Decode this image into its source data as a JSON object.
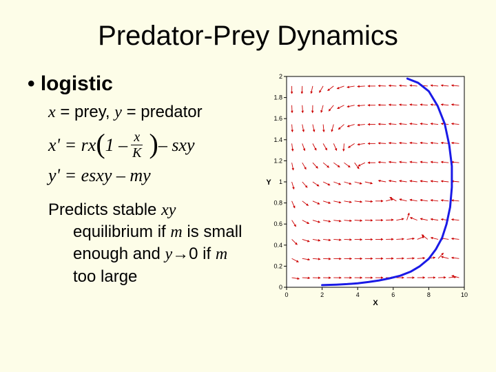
{
  "title": "Predator-Prey Dynamics",
  "bullet": "logistic",
  "sub_pre": "x",
  "sub_mid1": " = prey, ",
  "sub_y": "y",
  "sub_mid2": " = predator",
  "eq1_a": "x' = rx ",
  "eq1_b": "1 – ",
  "eq1_num": "x",
  "eq1_den": "K",
  "eq1_c": " – sxy",
  "eq2": "y' = esxy – my",
  "pred_a": "Predicts stable ",
  "pred_xy": "xy",
  "pred_b": " equilibrium if ",
  "pred_m1": "m",
  "pred_c": " is small enough and ",
  "pred_y0": "y→",
  "pred_zero": "0",
  "pred_d": " if ",
  "pred_m2": "m",
  "pred_e": " too large",
  "chart": {
    "type": "vector-field",
    "xlim": [
      0,
      10
    ],
    "ylim": [
      0,
      2
    ],
    "xticks": [
      0,
      2,
      4,
      6,
      8,
      10
    ],
    "yticks": [
      0,
      0.2,
      0.4,
      0.6,
      0.8,
      1,
      1.2,
      1.4,
      1.6,
      1.8,
      2
    ],
    "xlabel": "X",
    "ylabel": "Y",
    "tick_fontsize": 9,
    "label_fontsize": 11,
    "background_color": "#ffffff",
    "border_color": "#000000",
    "arrow_color": "#cc0000",
    "curve_color": "#1a1ae6",
    "curve_width": 3,
    "grid": {
      "nx": 17,
      "ny": 11
    },
    "field": {
      "r": 1.0,
      "K": 10.0,
      "s": 0.5,
      "e": 0.2,
      "m": 0.5
    },
    "curve": [
      [
        2.0,
        0.02
      ],
      [
        2.3,
        0.022
      ],
      [
        2.8,
        0.025
      ],
      [
        3.4,
        0.03
      ],
      [
        4.0,
        0.038
      ],
      [
        4.6,
        0.05
      ],
      [
        5.2,
        0.065
      ],
      [
        5.8,
        0.085
      ],
      [
        6.4,
        0.11
      ],
      [
        7.0,
        0.15
      ],
      [
        7.5,
        0.2
      ],
      [
        8.0,
        0.27
      ],
      [
        8.4,
        0.36
      ],
      [
        8.75,
        0.47
      ],
      [
        9.0,
        0.6
      ],
      [
        9.2,
        0.76
      ],
      [
        9.3,
        0.95
      ],
      [
        9.3,
        1.15
      ],
      [
        9.15,
        1.35
      ],
      [
        8.9,
        1.55
      ],
      [
        8.5,
        1.72
      ],
      [
        8.0,
        1.86
      ],
      [
        7.4,
        1.94
      ],
      [
        6.8,
        1.98
      ]
    ]
  }
}
